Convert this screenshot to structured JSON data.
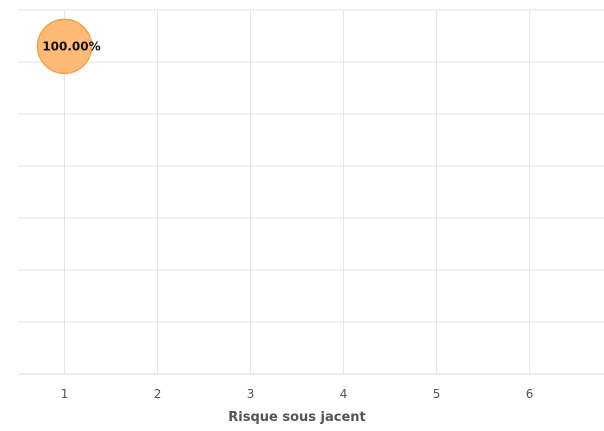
{
  "chart_data": {
    "type": "scatter",
    "xlabel": "Risque sous jacent",
    "ylabel": "",
    "title": "",
    "x_ticks": [
      "1",
      "2",
      "3",
      "4",
      "5",
      "6"
    ],
    "xlim": [
      0.5,
      6.8
    ],
    "ylim": [
      0,
      7
    ],
    "y_gridlines": 7,
    "grid": true,
    "points": [
      {
        "x": 1,
        "y": 6.3,
        "label": "100.00%",
        "color": "#ffb366",
        "border_color": "#f5a04a"
      }
    ]
  }
}
